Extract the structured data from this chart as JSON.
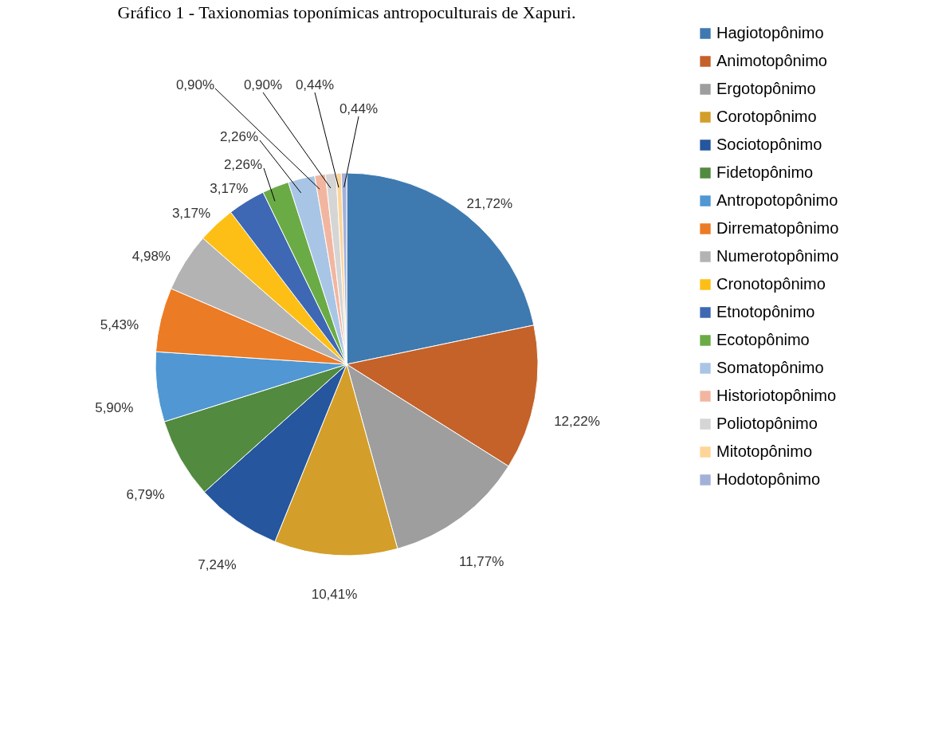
{
  "chart_data": {
    "type": "pie",
    "title": "Gráfico 1 - Taxionomias toponímicas antropoculturais de Xapuri.",
    "categories": [
      "Hagiotopônimo",
      "Animotopônimo",
      "Ergotopônimo",
      "Corotopônimo",
      "Sociotopônimo",
      "Fidetopônimo",
      "Antropotopônimo",
      "Dirrematopônimo",
      "Numerotopônimo",
      "Cronotopônimo",
      "Etnotopônimo",
      "Ecotopônimo",
      "Somatopônimo",
      "Historiotopônimo",
      "Poliotopônimo",
      "Mitotopônimo",
      "Hodotopônimo"
    ],
    "values": [
      21.72,
      12.22,
      11.77,
      10.41,
      7.24,
      6.79,
      5.9,
      5.43,
      4.98,
      3.17,
      3.17,
      2.26,
      2.26,
      0.9,
      0.9,
      0.44,
      0.44
    ],
    "value_labels": [
      "21,72%",
      "12,22%",
      "11,77%",
      "10,41%",
      "7,24%",
      "6,79%",
      "5,90%",
      "5,43%",
      "4,98%",
      "3,17%",
      "3,17%",
      "2,26%",
      "2,26%",
      "0,90%",
      "0,90%",
      "0,44%",
      "0,44%"
    ],
    "colors": [
      "#3e7ab0",
      "#c4622a",
      "#9e9e9e",
      "#d39e2a",
      "#25569e",
      "#528a3f",
      "#5097d3",
      "#ec7b25",
      "#b3b3b3",
      "#fdbf15",
      "#3e68b4",
      "#6aab46",
      "#a9c5e6",
      "#f2b6a0",
      "#d5d5d5",
      "#fed598",
      "#a3b1d9"
    ],
    "legend": "right"
  }
}
